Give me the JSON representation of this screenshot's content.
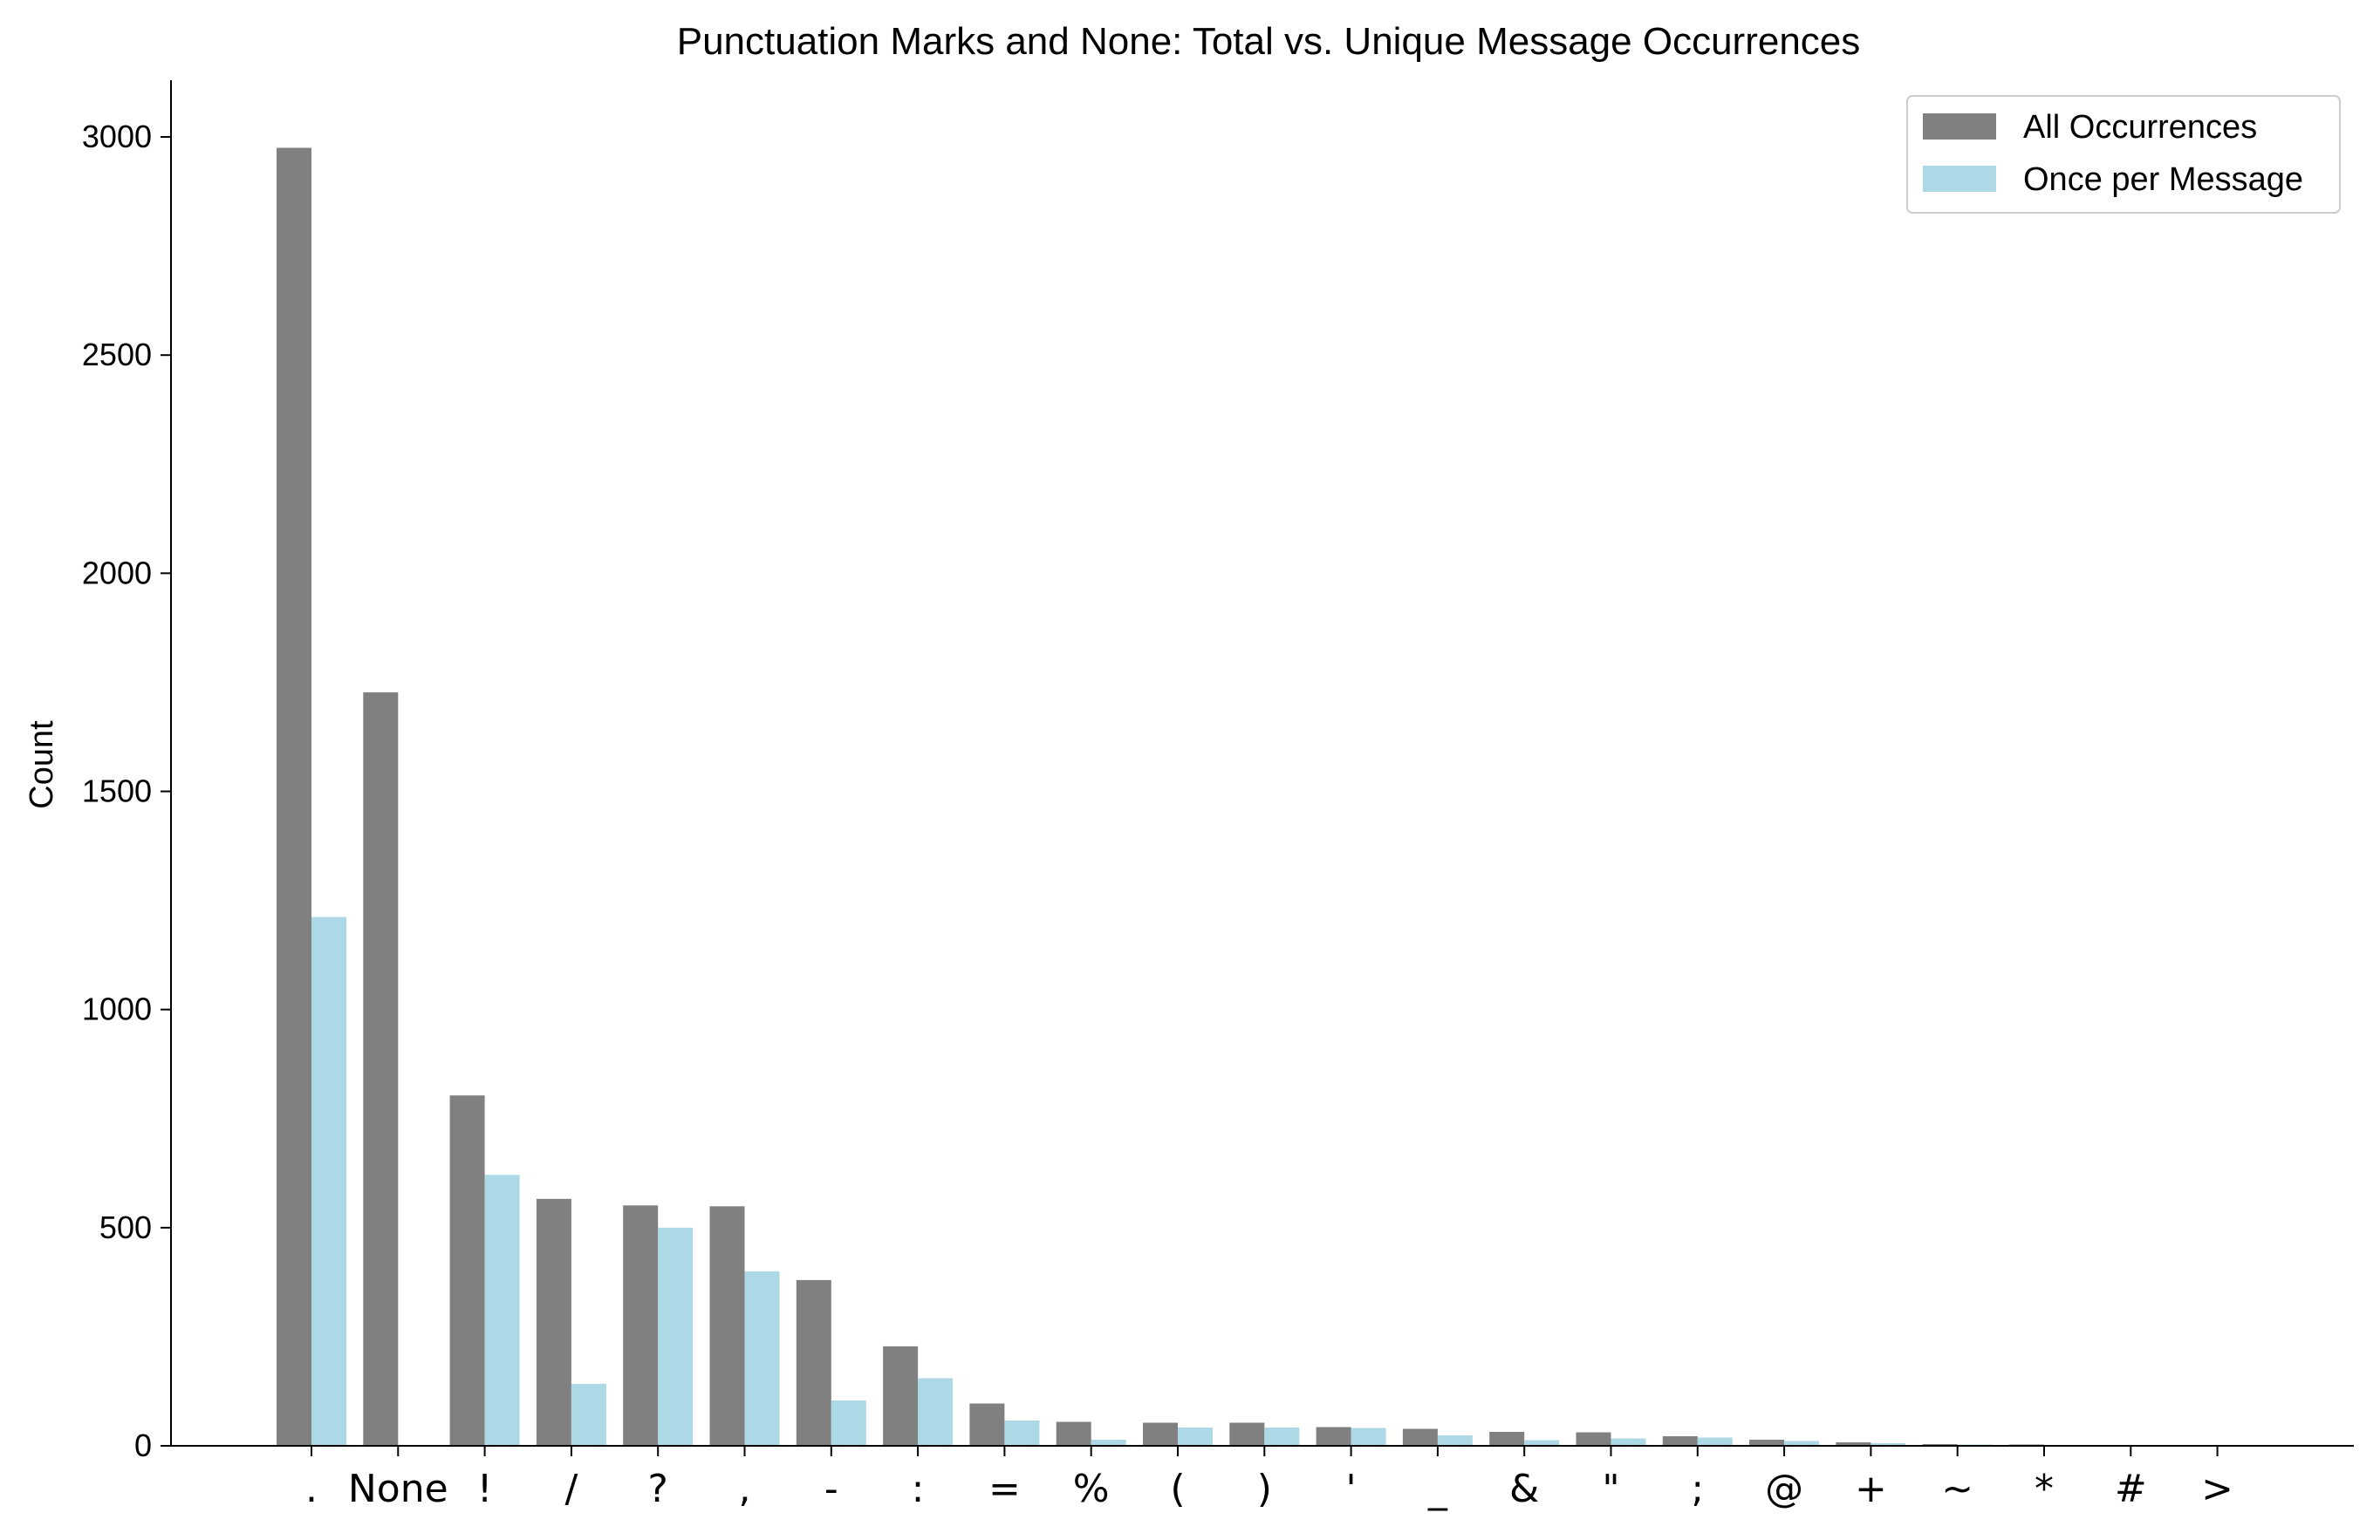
{
  "chart_data": {
    "type": "bar",
    "title": "Punctuation Marks and None: Total vs. Unique Message Occurrences",
    "xlabel": "",
    "ylabel": "Count",
    "ylim": [
      0,
      3130
    ],
    "yticks": [
      0,
      500,
      1000,
      1500,
      2000,
      2500,
      3000
    ],
    "grid": false,
    "legend_position": "top-right",
    "categories": [
      ".",
      "None",
      "!",
      "/",
      "?",
      ",",
      "-",
      ":",
      "=",
      "%",
      "(",
      ")",
      "'",
      "_",
      "&",
      "\"",
      ";",
      "@",
      "+",
      "~",
      "*",
      "#",
      ">"
    ],
    "series": [
      {
        "name": "All Occurrences",
        "color": "#808080",
        "values": [
          2975,
          1727,
          803,
          566,
          551,
          549,
          380,
          228,
          97,
          55,
          53,
          53,
          43,
          39,
          32,
          31,
          22,
          14,
          8,
          4,
          3,
          1,
          1
        ]
      },
      {
        "name": "Once per Message",
        "color": "#add8e6",
        "values": [
          1212,
          0,
          621,
          142,
          500,
          400,
          104,
          155,
          58,
          14,
          42,
          42,
          41,
          24,
          13,
          17,
          19,
          11,
          6,
          3,
          2,
          1,
          1
        ]
      }
    ]
  }
}
